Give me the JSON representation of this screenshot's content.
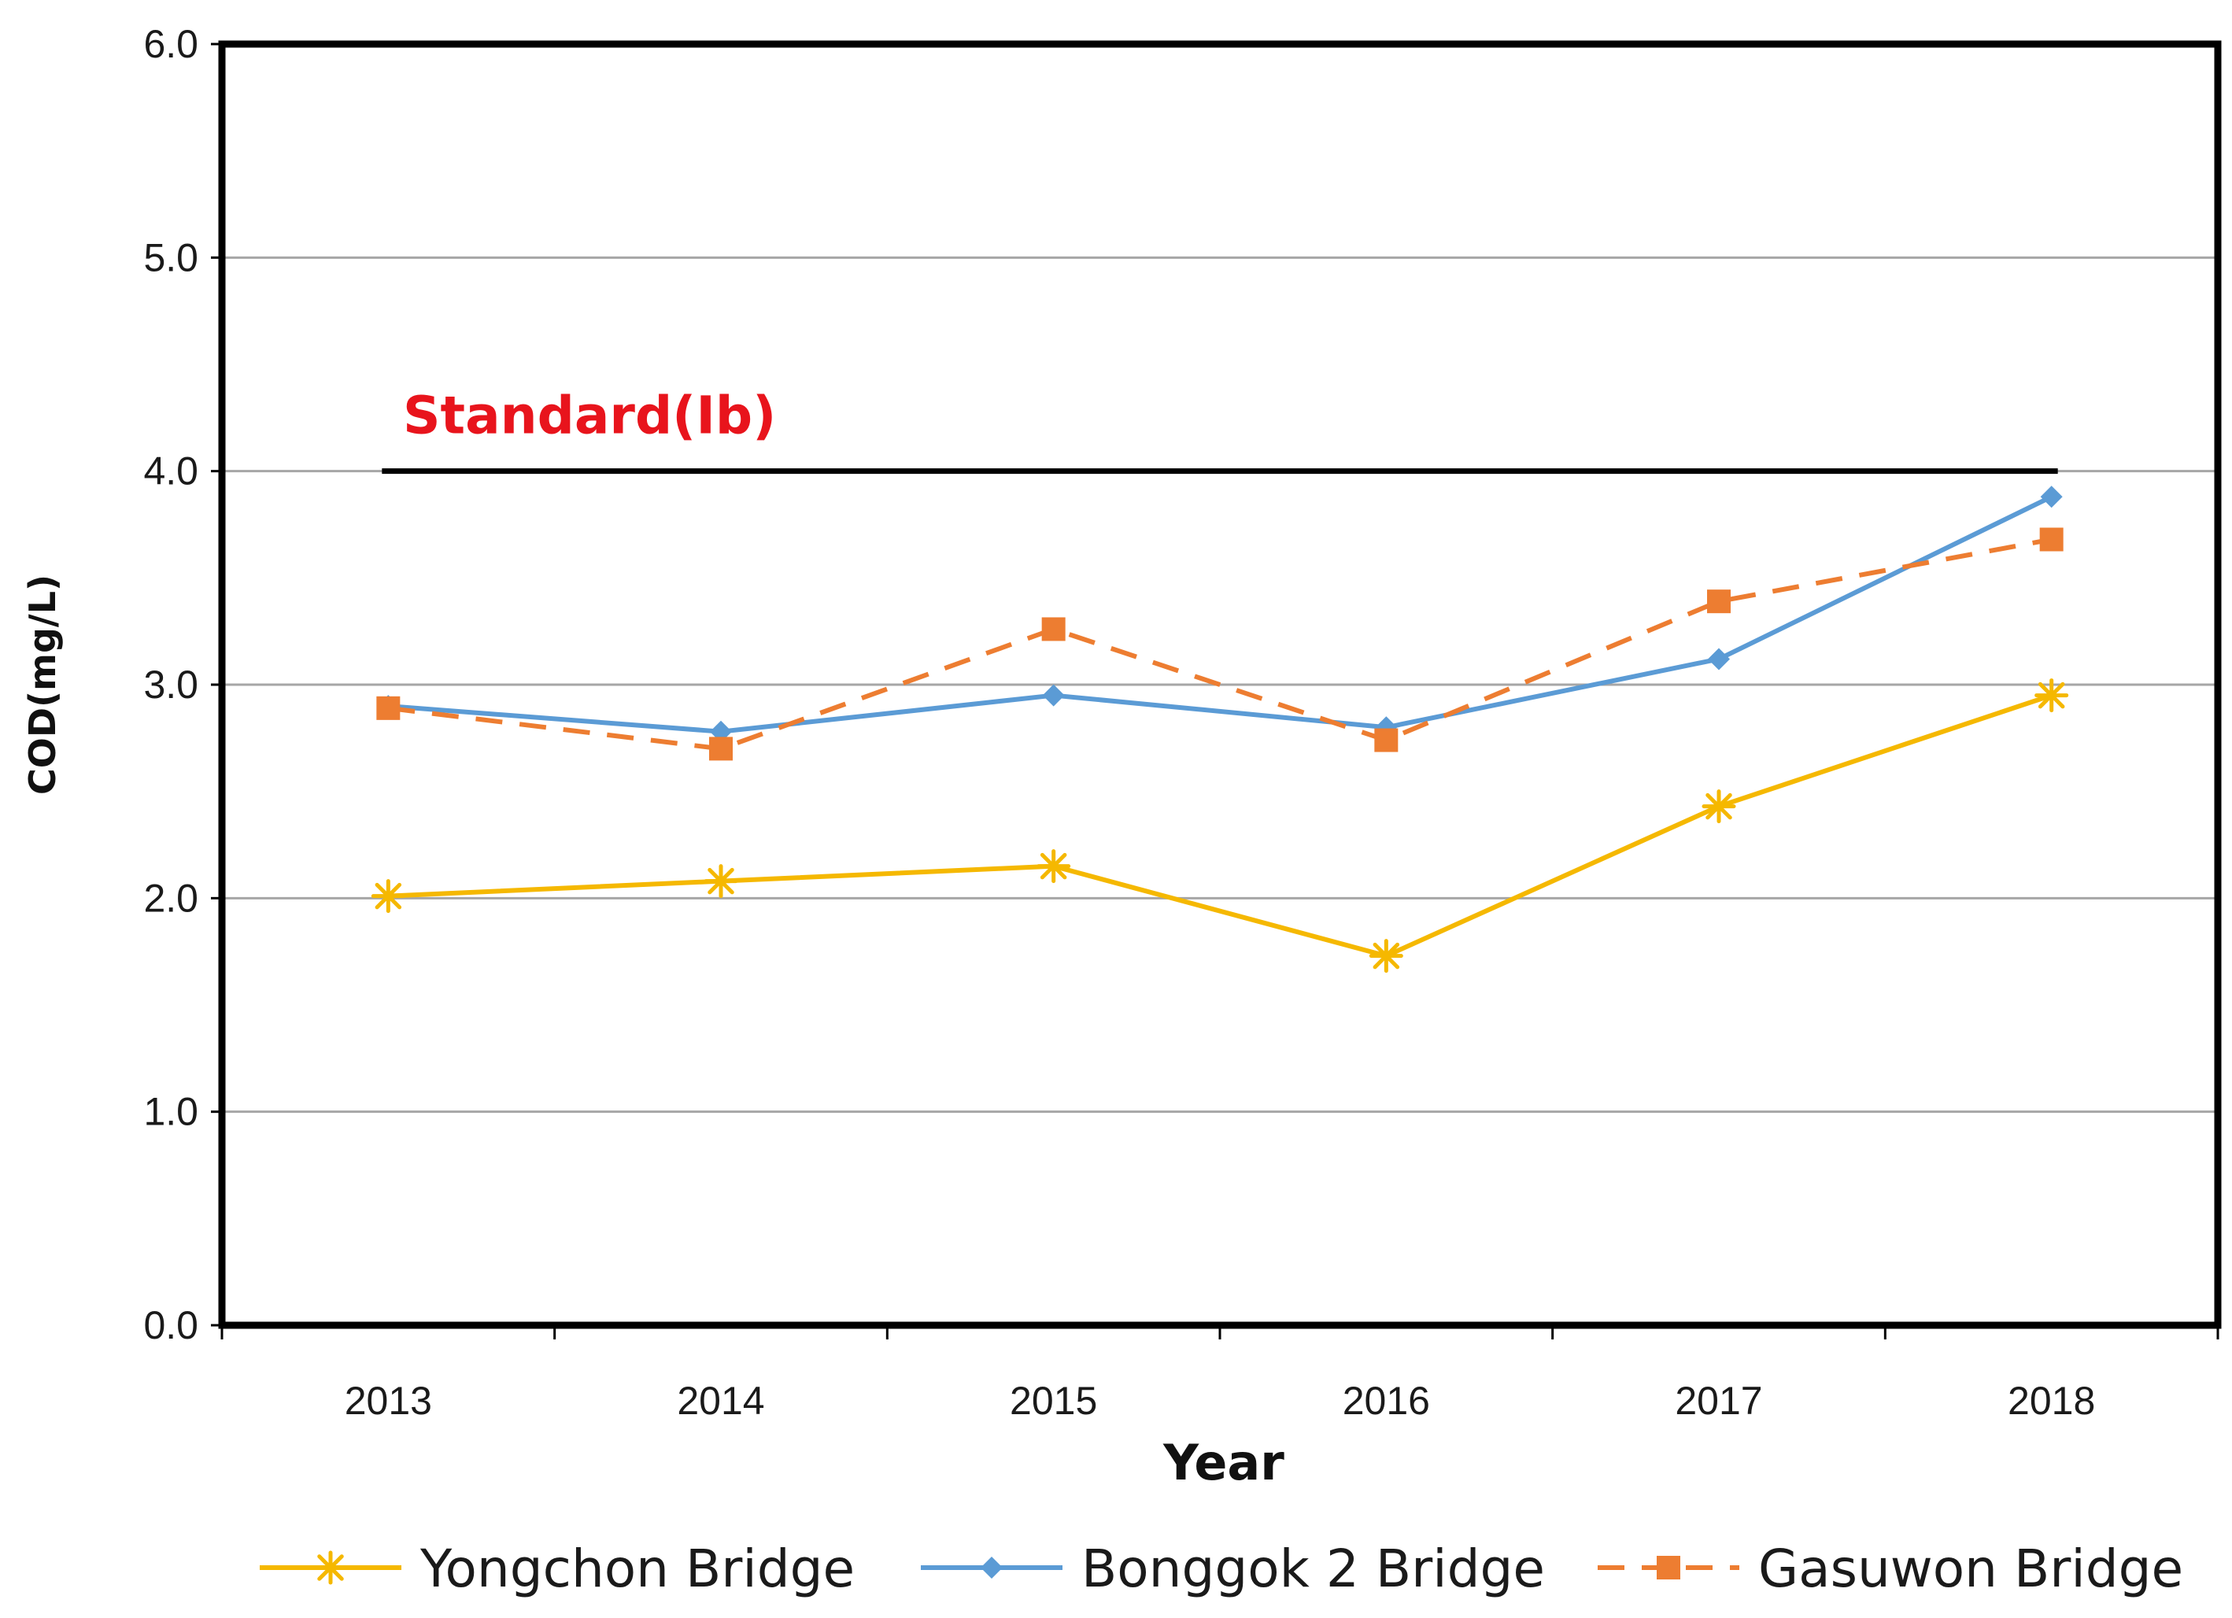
{
  "chart_data": {
    "type": "line",
    "xlabel": "Year",
    "ylabel": "COD(mg/L)",
    "categories": [
      "2013",
      "2014",
      "2015",
      "2016",
      "2017",
      "2018"
    ],
    "ylim": [
      0,
      6
    ],
    "yticks": [
      "0.0",
      "1.0",
      "2.0",
      "3.0",
      "4.0",
      "5.0",
      "6.0"
    ],
    "grid": true,
    "legend_position": "bottom",
    "standard": {
      "label": "Standard(Ib)",
      "value": 4.0,
      "color": "#000000"
    },
    "series": [
      {
        "name": "Yongchon Bridge",
        "values": [
          2.01,
          2.08,
          2.15,
          1.73,
          2.43,
          2.95
        ],
        "color": "#f5b800",
        "marker": "star",
        "dash": "solid"
      },
      {
        "name": "Bonggok 2 Bridge",
        "values": [
          2.9,
          2.78,
          2.95,
          2.8,
          3.12,
          3.88
        ],
        "color": "#5b9bd5",
        "marker": "diamond",
        "dash": "solid"
      },
      {
        "name": "Gasuwon Bridge",
        "values": [
          2.89,
          2.7,
          3.26,
          2.74,
          3.39,
          3.68
        ],
        "color": "#ed7d31",
        "marker": "square",
        "dash": "dashed"
      }
    ]
  }
}
